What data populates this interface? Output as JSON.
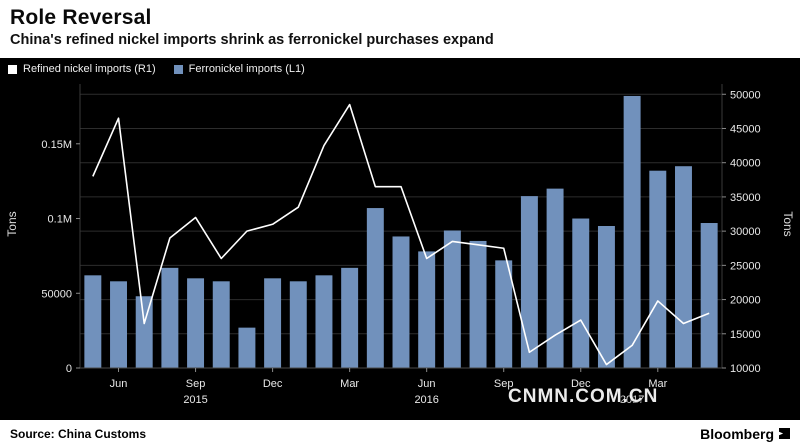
{
  "header": {
    "title": "Role Reversal",
    "subtitle": "China's refined nickel imports shrink as ferronickel purchases expand"
  },
  "legend": [
    {
      "label": "Refined nickel imports  (R1)",
      "color": "#ffffff"
    },
    {
      "label": "Ferronickel imports  (L1)",
      "color": "#7191bc"
    }
  ],
  "watermark": "CNMN.COM.CN",
  "footer": {
    "source": "Source: China Customs",
    "brand": "Bloomberg"
  },
  "colors": {
    "chart_background": "#000000",
    "bar": "#7191bc",
    "line": "#ffffff",
    "grid": "#2d2d2d",
    "axis_text": "#e8e8e8"
  },
  "chart_data": {
    "type": "bar",
    "subtype": "bar-and-line combo, dual axis",
    "title": "Role Reversal",
    "subtitle": "China's refined nickel imports shrink as ferronickel purchases expand",
    "x": [
      "May 2015",
      "Jun 2015",
      "Jul 2015",
      "Aug 2015",
      "Sep 2015",
      "Oct 2015",
      "Nov 2015",
      "Dec 2015",
      "Jan 2016",
      "Feb 2016",
      "Mar 2016",
      "Apr 2016",
      "May 2016",
      "Jun 2016",
      "Jul 2016",
      "Aug 2016",
      "Sep 2016",
      "Oct 2016",
      "Nov 2016",
      "Dec 2016",
      "Jan 2017",
      "Feb 2017",
      "Mar 2017",
      "Apr 2017",
      "May 2017"
    ],
    "series": [
      {
        "name": "Ferronickel imports (L1)",
        "type": "bar",
        "axis": "left",
        "color": "#7191bc",
        "values": [
          62000,
          58000,
          48000,
          67000,
          60000,
          58000,
          27000,
          60000,
          58000,
          62000,
          67000,
          107000,
          88000,
          78000,
          92000,
          85000,
          72000,
          115000,
          120000,
          100000,
          95000,
          182000,
          132000,
          135000,
          97000
        ]
      },
      {
        "name": "Refined nickel imports (R1)",
        "type": "line",
        "axis": "right",
        "color": "#ffffff",
        "values": [
          38000,
          46500,
          16500,
          29000,
          32000,
          26000,
          30000,
          31000,
          33500,
          42500,
          48500,
          36500,
          36500,
          26000,
          28500,
          28000,
          27500,
          12300,
          14800,
          17000,
          10500,
          13300,
          19800,
          16500,
          18000
        ]
      }
    ],
    "left_axis": {
      "title": "Tons",
      "range": [
        0,
        190000
      ],
      "ticks": [
        {
          "value": 0,
          "label": "0"
        },
        {
          "value": 50000,
          "label": "50000"
        },
        {
          "value": 100000,
          "label": "0.1M"
        },
        {
          "value": 150000,
          "label": "0.15M"
        }
      ]
    },
    "right_axis": {
      "title": "Tons",
      "range": [
        10000,
        51500
      ],
      "ticks": [
        {
          "value": 10000,
          "label": "10000"
        },
        {
          "value": 15000,
          "label": "15000"
        },
        {
          "value": 20000,
          "label": "20000"
        },
        {
          "value": 25000,
          "label": "25000"
        },
        {
          "value": 30000,
          "label": "30000"
        },
        {
          "value": 35000,
          "label": "35000"
        },
        {
          "value": 40000,
          "label": "40000"
        },
        {
          "value": 45000,
          "label": "45000"
        },
        {
          "value": 50000,
          "label": "50000"
        }
      ]
    },
    "x_axis": {
      "month_ticks": [
        {
          "label": "Jun",
          "index": 1
        },
        {
          "label": "Sep",
          "index": 4
        },
        {
          "label": "Dec",
          "index": 7
        },
        {
          "label": "Mar",
          "index": 10
        },
        {
          "label": "Jun",
          "index": 13
        },
        {
          "label": "Sep",
          "index": 16
        },
        {
          "label": "Dec",
          "index": 19
        },
        {
          "label": "Mar",
          "index": 22
        }
      ],
      "year_labels": [
        {
          "label": "2015",
          "index": 4
        },
        {
          "label": "2016",
          "index": 13
        },
        {
          "label": "2017",
          "index": 21
        }
      ]
    },
    "grid": "horizontal only",
    "legend_position": "top-left inside plot"
  }
}
